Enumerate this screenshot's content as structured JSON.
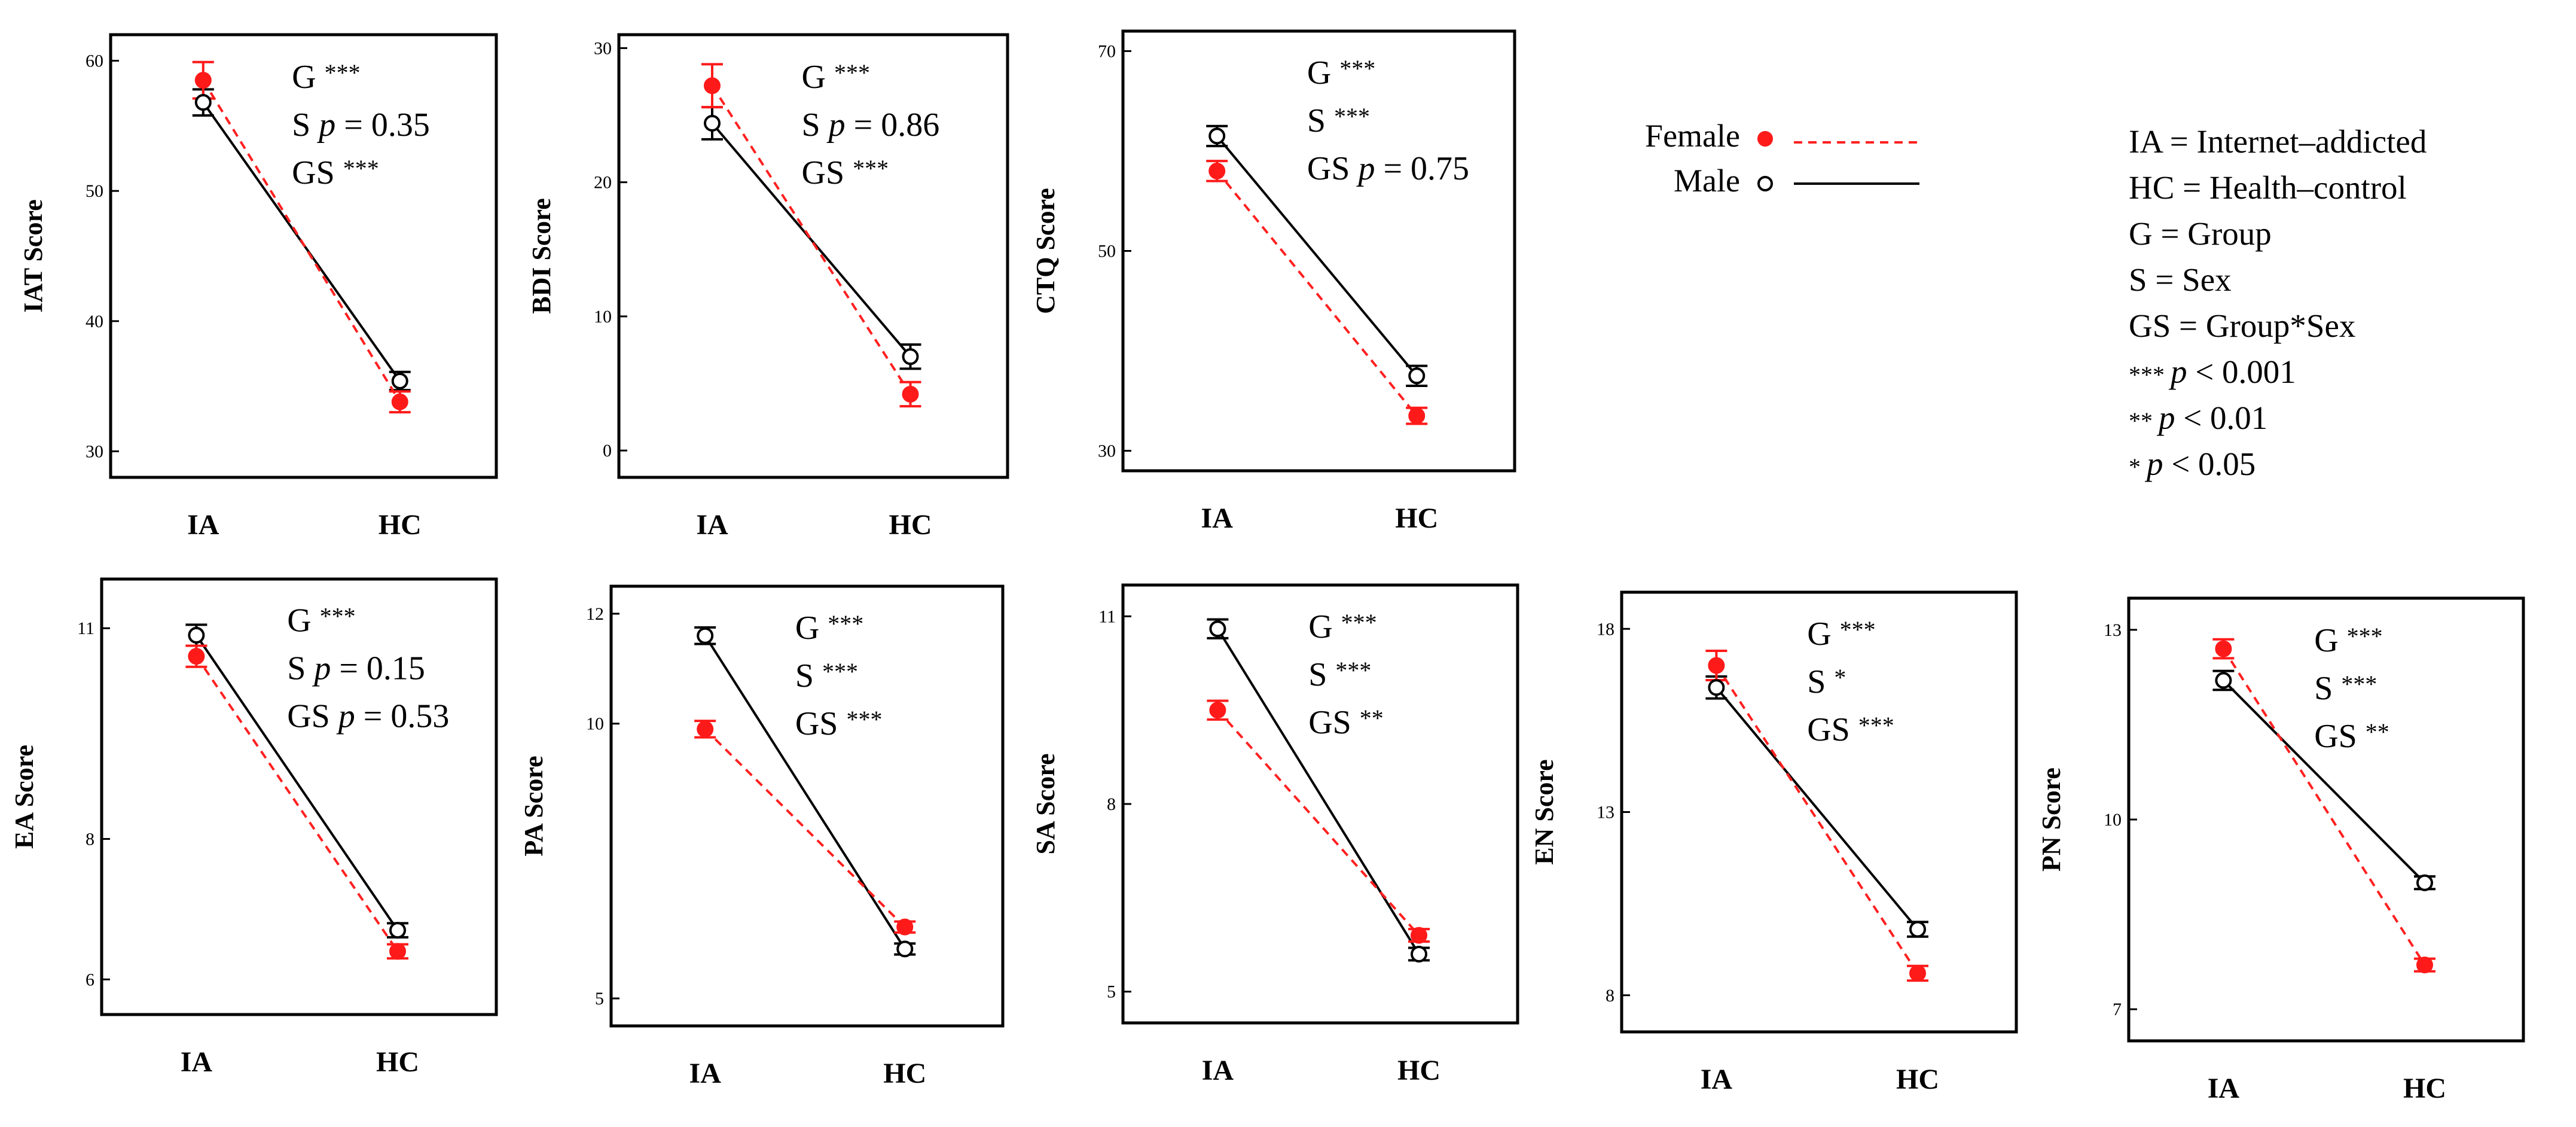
{
  "legend": {
    "female_label": "Female",
    "male_label": "Male",
    "female_color": "#ff1a1a",
    "male_color": "#000000"
  },
  "key_lines": [
    "IA = Internet–addicted",
    "HC = Health–control",
    "G = Group",
    "S = Sex",
    "GS = Group*Sex",
    "***    p < 0.001",
    "**    p < 0.01",
    "*    p < 0.05"
  ],
  "chart_data": [
    {
      "type": "line",
      "ylabel": "IAT Score",
      "categories": [
        "IA",
        "HC"
      ],
      "ylim": [
        28,
        62
      ],
      "yticks": [
        30,
        40,
        50,
        60
      ],
      "series": [
        {
          "name": "Female",
          "values": [
            58.5,
            33.8
          ],
          "err": [
            1.4,
            0.8
          ]
        },
        {
          "name": "Male",
          "values": [
            56.8,
            35.4
          ],
          "err": [
            1.0,
            0.7
          ]
        }
      ],
      "annotations": [
        "G ***",
        "S p = 0.35",
        "GS ***"
      ]
    },
    {
      "type": "line",
      "ylabel": "BDI Score",
      "categories": [
        "IA",
        "HC"
      ],
      "ylim": [
        -2,
        31
      ],
      "yticks": [
        0,
        10,
        20,
        30
      ],
      "series": [
        {
          "name": "Female",
          "values": [
            27.2,
            4.2
          ],
          "err": [
            1.6,
            0.9
          ]
        },
        {
          "name": "Male",
          "values": [
            24.4,
            7.0
          ],
          "err": [
            1.2,
            0.9
          ]
        }
      ],
      "annotations": [
        "G ***",
        "S p = 0.86",
        "GS ***"
      ]
    },
    {
      "type": "line",
      "ylabel": "CTQ Score",
      "categories": [
        "IA",
        "HC"
      ],
      "ylim": [
        28,
        72
      ],
      "yticks": [
        30,
        50,
        70
      ],
      "series": [
        {
          "name": "Female",
          "values": [
            58.0,
            33.5
          ],
          "err": [
            1.0,
            0.8
          ]
        },
        {
          "name": "Male",
          "values": [
            61.5,
            37.5
          ],
          "err": [
            1.0,
            1.0
          ]
        }
      ],
      "annotations": [
        "G ***",
        "S ***",
        "GS p = 0.75"
      ]
    },
    {
      "type": "line",
      "ylabel": "EA Score",
      "categories": [
        "IA",
        "HC"
      ],
      "ylim": [
        5.5,
        11.7
      ],
      "yticks": [
        6,
        8,
        11
      ],
      "series": [
        {
          "name": "Female",
          "values": [
            10.6,
            6.4
          ],
          "err": [
            0.15,
            0.1
          ]
        },
        {
          "name": "Male",
          "values": [
            10.9,
            6.7
          ],
          "err": [
            0.15,
            0.1
          ]
        }
      ],
      "annotations": [
        "G ***",
        "S p = 0.15",
        "GS p = 0.53"
      ]
    },
    {
      "type": "line",
      "ylabel": "PA Score",
      "categories": [
        "IA",
        "HC"
      ],
      "ylim": [
        4.5,
        12.5
      ],
      "yticks": [
        5,
        10,
        12
      ],
      "series": [
        {
          "name": "Female",
          "values": [
            9.9,
            6.3
          ],
          "err": [
            0.15,
            0.1
          ]
        },
        {
          "name": "Male",
          "values": [
            11.6,
            5.9
          ],
          "err": [
            0.15,
            0.1
          ]
        }
      ],
      "annotations": [
        "G ***",
        "S ***",
        "GS ***"
      ]
    },
    {
      "type": "line",
      "ylabel": "SA Score",
      "categories": [
        "IA",
        "HC"
      ],
      "ylim": [
        4.5,
        11.5
      ],
      "yticks": [
        5,
        8,
        11
      ],
      "series": [
        {
          "name": "Female",
          "values": [
            9.5,
            5.9
          ],
          "err": [
            0.15,
            0.1
          ]
        },
        {
          "name": "Male",
          "values": [
            10.8,
            5.6
          ],
          "err": [
            0.15,
            0.1
          ]
        }
      ],
      "annotations": [
        "G ***",
        "S ***",
        "GS **"
      ]
    },
    {
      "type": "line",
      "ylabel": "EN Score",
      "categories": [
        "IA",
        "HC"
      ],
      "ylim": [
        7,
        19
      ],
      "yticks": [
        8,
        13,
        18
      ],
      "series": [
        {
          "name": "Female",
          "values": [
            17.0,
            8.6
          ],
          "err": [
            0.4,
            0.2
          ]
        },
        {
          "name": "Male",
          "values": [
            16.4,
            9.8
          ],
          "err": [
            0.3,
            0.2
          ]
        }
      ],
      "annotations": [
        "G ***",
        "S *",
        "GS ***"
      ]
    },
    {
      "type": "line",
      "ylabel": "PN Score",
      "categories": [
        "IA",
        "HC"
      ],
      "ylim": [
        6.5,
        13.5
      ],
      "yticks": [
        7,
        10,
        13
      ],
      "series": [
        {
          "name": "Female",
          "values": [
            12.7,
            7.7
          ],
          "err": [
            0.15,
            0.1
          ]
        },
        {
          "name": "Male",
          "values": [
            12.2,
            9.0
          ],
          "err": [
            0.15,
            0.1
          ]
        }
      ],
      "annotations": [
        "G ***",
        "S ***",
        "GS **"
      ]
    }
  ]
}
